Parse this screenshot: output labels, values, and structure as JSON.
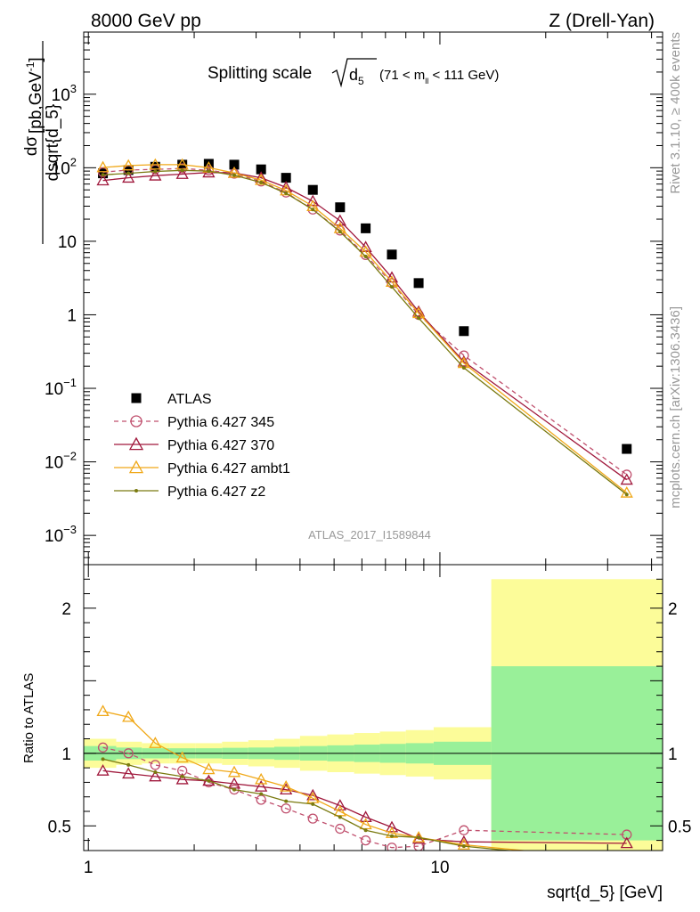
{
  "header": {
    "left": "8000 GeV pp",
    "right": "Z (Drell-Yan)"
  },
  "side_text": {
    "rivet": "Rivet 3.1.10, ≥ 400k events",
    "mcplots": "mcplots.cern.ch [arXiv:1306.3436]"
  },
  "chart_data": [
    {
      "type": "scatter",
      "panel": "main",
      "title": "Splitting scale √d₅ (71 < mₗₗ < 111 GeV)",
      "title_main": "Splitting scale",
      "title_sub": "5",
      "title_range": "(71 < m",
      "title_range_sub": "ll",
      "title_range_end": " < 111 GeV)",
      "ylabel_num": "dσ",
      "ylabel_den": "dsqrt{d_5}",
      "ylabel_unit": "[pb,GeV",
      "ylabel_unit_sup": "-1",
      "ylabel_unit_end": "]",
      "yscale": "log",
      "ylim": [
        0.0004,
        7000
      ],
      "xscale": "log",
      "xlim": [
        0.97,
        43
      ],
      "yticks": [
        {
          "v": 0.001,
          "base": "10",
          "exp": "−3"
        },
        {
          "v": 0.01,
          "base": "10",
          "exp": "−2"
        },
        {
          "v": 0.1,
          "base": "10",
          "exp": "−1"
        },
        {
          "v": 1,
          "text": "1"
        },
        {
          "v": 10,
          "text": "10"
        },
        {
          "v": 100,
          "base": "10",
          "exp": "2"
        },
        {
          "v": 1000,
          "base": "10",
          "exp": "3"
        }
      ],
      "watermark": "ATLAS_2017_I1589844",
      "legend_position": "lower-left",
      "x": [
        1.1,
        1.3,
        1.55,
        1.85,
        2.2,
        2.6,
        3.1,
        3.65,
        4.35,
        5.2,
        6.15,
        7.3,
        8.7,
        11.7,
        34.0
      ],
      "series": [
        {
          "name": "ATLAS",
          "style": "data",
          "color": "#000000",
          "values": [
            84,
            93,
            103,
            110,
            113,
            110,
            95,
            73,
            50,
            29,
            15,
            6.6,
            2.7,
            0.6,
            0.015
          ]
        },
        {
          "name": "Pythia 6.427 345",
          "style": "circle-dashed",
          "color": "#c0506e",
          "values": [
            87,
            93,
            95,
            98,
            92,
            83,
            65,
            46,
            27,
            14,
            6.5,
            2.7,
            1.0,
            0.28,
            0.0067
          ]
        },
        {
          "name": "Pythia 6.427 370",
          "style": "triangle-solid",
          "color": "#a0183c",
          "values": [
            67,
            73,
            78,
            82,
            86,
            85,
            73,
            54,
            35,
            19,
            8.3,
            3.2,
            1.1,
            0.23,
            0.0057
          ]
        },
        {
          "name": "Pythia 6.427 ambt1",
          "style": "triangle-solid",
          "color": "#f0a818",
          "values": [
            101,
            107,
            110,
            110,
            100,
            85,
            68,
            49,
            30,
            15,
            7.2,
            2.8,
            1.05,
            0.22,
            0.0038
          ]
        },
        {
          "name": "Pythia 6.427 z2",
          "style": "dot-solid",
          "color": "#7a7a10",
          "values": [
            80,
            84,
            89,
            92,
            90,
            79,
            63,
            45,
            27,
            13.5,
            6.2,
            2.4,
            0.9,
            0.19,
            0.0036
          ]
        }
      ]
    },
    {
      "type": "line",
      "panel": "ratio",
      "ylabel": "Ratio to ATLAS",
      "xlabel": "sqrt{d_5} [GeV]",
      "ylim": [
        0.33,
        2.3
      ],
      "yticks": [
        {
          "v": 0.5,
          "text": "0.5"
        },
        {
          "v": 1,
          "text": "1"
        },
        {
          "v": 2,
          "text": "2"
        }
      ],
      "xticks": [
        {
          "v": 1,
          "text": "1"
        },
        {
          "v": 10,
          "text": "10"
        }
      ],
      "bands": {
        "edges": [
          0.97,
          1.2,
          1.42,
          1.7,
          2.02,
          2.4,
          2.85,
          3.38,
          4.0,
          4.78,
          5.7,
          6.75,
          8.0,
          9.6,
          14.0,
          43
        ],
        "stat_half_width": [
          0.05,
          0.04,
          0.035,
          0.035,
          0.035,
          0.038,
          0.04,
          0.045,
          0.05,
          0.055,
          0.06,
          0.065,
          0.07,
          0.08,
          0.6
        ],
        "total_half_width": [
          0.1,
          0.08,
          0.07,
          0.07,
          0.07,
          0.08,
          0.09,
          0.1,
          0.12,
          0.13,
          0.14,
          0.15,
          0.16,
          0.18,
          1.2
        ],
        "stat_color": "#99f099",
        "total_color": "#fcfc99"
      },
      "series": [
        {
          "name": "Pythia 6.427 345",
          "color": "#c0506e",
          "values": [
            1.04,
            1.0,
            0.92,
            0.88,
            0.8,
            0.75,
            0.68,
            0.62,
            0.55,
            0.48,
            0.4,
            0.35,
            0.36,
            0.47,
            0.44
          ]
        },
        {
          "name": "Pythia 6.427 370",
          "color": "#a0183c",
          "values": [
            0.88,
            0.86,
            0.84,
            0.82,
            0.81,
            0.79,
            0.77,
            0.75,
            0.71,
            0.64,
            0.56,
            0.49,
            0.41,
            0.39,
            0.38
          ]
        },
        {
          "name": "Pythia 6.427 ambt1",
          "color": "#f0a818",
          "values": [
            1.29,
            1.25,
            1.07,
            0.97,
            0.89,
            0.87,
            0.82,
            0.77,
            0.69,
            0.6,
            0.51,
            0.45,
            0.42,
            0.37,
            0.26
          ]
        },
        {
          "name": "Pythia 6.427 z2",
          "color": "#7a7a10",
          "values": [
            0.96,
            0.92,
            0.87,
            0.84,
            0.81,
            0.75,
            0.72,
            0.67,
            0.65,
            0.56,
            0.47,
            0.43,
            0.42,
            0.36,
            0.25
          ]
        }
      ]
    }
  ]
}
